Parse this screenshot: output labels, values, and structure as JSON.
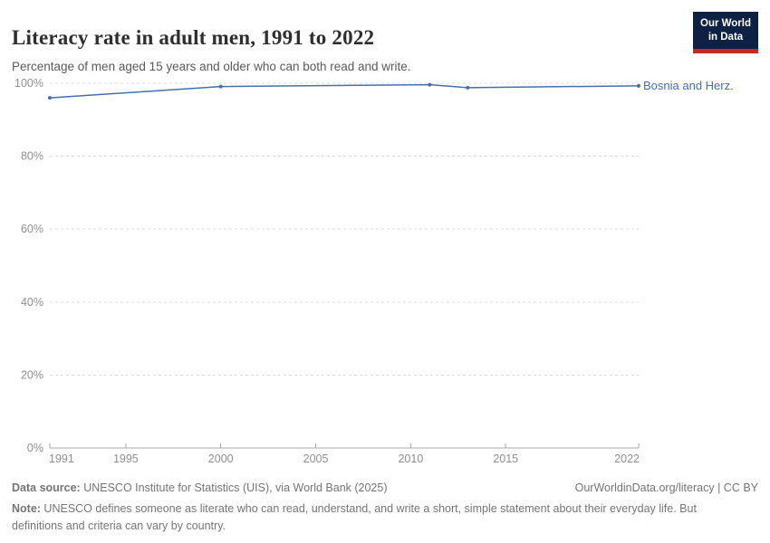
{
  "header": {
    "title": "Literacy rate in adult men, 1991 to 2022",
    "subtitle": "Percentage of men aged 15 years and older who can both read and write.",
    "logo": {
      "line1": "Our World",
      "line2": "in Data"
    }
  },
  "chart_data": {
    "type": "line",
    "title": "Literacy rate in adult men, 1991 to 2022",
    "xlabel": "",
    "ylabel": "",
    "xlim": [
      1991,
      2022
    ],
    "ylim": [
      0,
      100
    ],
    "xticks": [
      1991,
      1995,
      2000,
      2005,
      2010,
      2015,
      2022
    ],
    "yticks": [
      0,
      20,
      40,
      60,
      80,
      100
    ],
    "y_tick_suffix": "%",
    "grid": "horizontal-dashed",
    "legend_position": "end-of-line-label",
    "series": [
      {
        "name": "Bosnia and Herz.",
        "x": [
          1991,
          2000,
          2011,
          2013,
          2022
        ],
        "values": [
          96.0,
          99.1,
          99.6,
          98.8,
          99.3
        ]
      }
    ],
    "entity_label": "Bosnia and Herz."
  },
  "footer": {
    "data_source_label": "Data source:",
    "data_source": " UNESCO Institute for Statistics (UIS), via World Bank (2025)",
    "link": "OurWorldinData.org/literacy | CC BY",
    "note_label": "Note:",
    "note": " UNESCO defines someone as literate who can read, understand, and write a short, simple statement about their everyday life. But definitions and criteria can vary by country."
  },
  "colors": {
    "line": "#4670aa",
    "grid": "#dcdcdc",
    "axis": "#a9a9a9",
    "tick_label": "#8f8f8f",
    "title": "#2e2e2e",
    "subtitle": "#5a5a5a",
    "footer_text": "#757575",
    "logo_background": "#0d2144",
    "logo_underline": "#c52a24"
  }
}
